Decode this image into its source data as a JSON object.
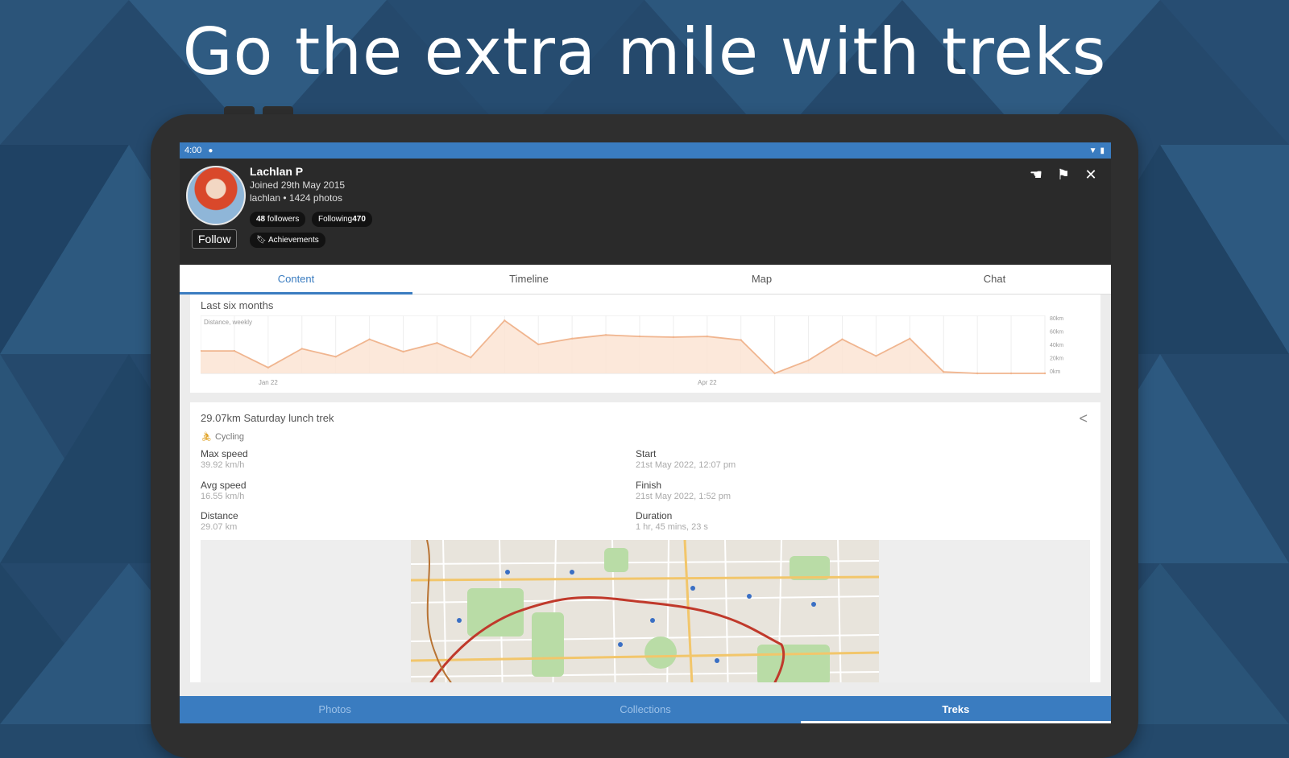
{
  "headline": "Go the extra mile with treks",
  "status_bar": {
    "time": "4:00"
  },
  "profile": {
    "name": "Lachlan P",
    "joined": "Joined 29th May 2015",
    "username_photos": "lachlan • 1424 photos",
    "followers_count": "48",
    "followers_label": "followers",
    "following_label": "Following",
    "following_count": "470",
    "achievements_label": "Achievements",
    "follow_button": "Follow"
  },
  "tabs": [
    {
      "label": "Content",
      "active": true
    },
    {
      "label": "Timeline",
      "active": false
    },
    {
      "label": "Map",
      "active": false
    },
    {
      "label": "Chat",
      "active": false
    }
  ],
  "chart_card": {
    "title": "Last six months",
    "chart_data": {
      "type": "area",
      "series": [
        {
          "name": "Distance, weekly",
          "values": [
            31,
            31,
            8,
            34,
            23,
            47,
            30,
            42,
            22,
            73,
            40,
            48,
            53,
            51,
            50,
            51,
            46,
            0,
            18,
            47,
            24,
            48,
            2,
            0,
            0,
            0
          ]
        }
      ],
      "x_tick_labels": [
        "Jan 22",
        "Apr 22"
      ],
      "y_tick_labels": [
        "80km",
        "60km",
        "40km",
        "20km",
        "0km"
      ],
      "ylim": [
        0,
        80
      ],
      "grid": true,
      "color": "#f0b58f"
    }
  },
  "trek": {
    "title": "29.07km Saturday lunch trek",
    "type": "Cycling",
    "stats_left": [
      {
        "label": "Max speed",
        "value": "39.92 km/h"
      },
      {
        "label": "Avg speed",
        "value": "16.55 km/h"
      },
      {
        "label": "Distance",
        "value": "29.07 km"
      }
    ],
    "stats_right": [
      {
        "label": "Start",
        "value": "21st May 2022, 12:07 pm"
      },
      {
        "label": "Finish",
        "value": "21st May 2022, 1:52 pm"
      },
      {
        "label": "Duration",
        "value": "1 hr, 45 mins, 23 s"
      }
    ]
  },
  "bottom_nav": [
    {
      "label": "Photos",
      "active": false
    },
    {
      "label": "Collections",
      "active": false
    },
    {
      "label": "Treks",
      "active": true
    }
  ],
  "icons": {
    "top_right": [
      "hand-point-icon",
      "flag-icon",
      "close-icon"
    ]
  },
  "colors": {
    "accent": "#3a7cc0",
    "background": "#24496b",
    "header": "#2a2a2a"
  }
}
